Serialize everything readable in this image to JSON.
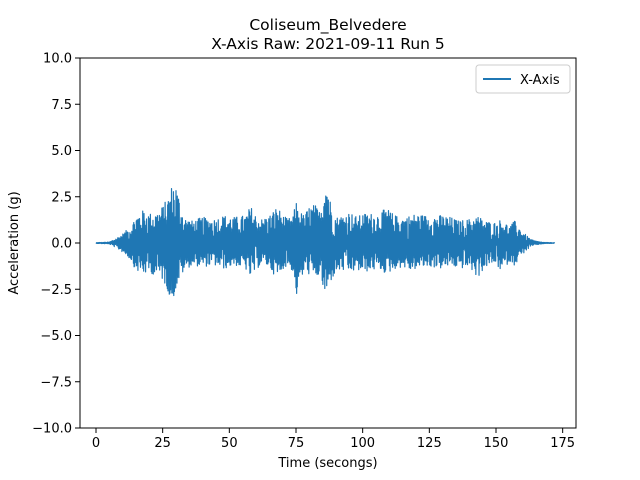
{
  "chart_data": {
    "type": "line",
    "title": "Coliseum_Belvedere",
    "subtitle": "X-Axis Raw: 2021-09-11 Run 5",
    "xlabel": "Time (secongs)",
    "ylabel": "Acceleration (g)",
    "xlim": [
      -6,
      180
    ],
    "ylim": [
      -10,
      10
    ],
    "x_ticks": [
      0,
      25,
      50,
      75,
      100,
      125,
      150,
      175
    ],
    "x_tick_labels": [
      "0",
      "25",
      "50",
      "75",
      "100",
      "125",
      "150",
      "175"
    ],
    "y_ticks": [
      10,
      7.5,
      5,
      2.5,
      0,
      -2.5,
      -5,
      -7.5,
      -10
    ],
    "y_tick_labels": [
      "10.0",
      "7.5",
      "5.0",
      "2.5",
      "0.0",
      "−2.5",
      "−5.0",
      "−7.5",
      "−10.0"
    ],
    "grid": false,
    "legend_position": "top-right",
    "series": [
      {
        "name": "X-Axis",
        "color": "#1f77b4",
        "envelope": {
          "x": [
            0,
            5,
            8,
            10,
            13,
            15,
            18,
            20,
            23,
            25,
            27,
            28,
            29,
            30,
            31,
            33,
            36,
            40,
            44,
            48,
            52,
            56,
            58,
            60,
            62,
            65,
            68,
            70,
            72,
            74,
            75,
            76,
            78,
            80,
            82,
            84,
            86,
            87,
            88,
            90,
            92,
            95,
            98,
            100,
            103,
            106,
            109,
            112,
            115,
            118,
            120,
            123,
            126,
            130,
            133,
            136,
            140,
            143,
            146,
            150,
            152,
            155,
            157,
            160,
            163,
            165,
            168,
            172
          ],
          "upper": [
            0.02,
            0.05,
            0.3,
            0.5,
            0.9,
            1.5,
            1.8,
            1.6,
            1.7,
            2.0,
            2.5,
            3.0,
            3.3,
            3.2,
            2.6,
            1.4,
            1.2,
            1.4,
            1.3,
            1.5,
            1.4,
            1.5,
            2.0,
            1.5,
            1.3,
            1.5,
            2.0,
            1.5,
            1.3,
            1.5,
            2.3,
            1.8,
            1.5,
            2.0,
            2.1,
            1.7,
            3.9,
            3.2,
            2.2,
            1.4,
            1.5,
            1.7,
            1.4,
            1.6,
            1.6,
            1.6,
            1.9,
            1.5,
            1.4,
            1.5,
            1.6,
            1.5,
            1.5,
            1.5,
            1.4,
            1.2,
            1.3,
            1.5,
            1.2,
            1.1,
            1.3,
            0.9,
            1.2,
            0.6,
            0.2,
            0.1,
            0.03,
            0.02
          ],
          "lower": [
            -0.02,
            -0.05,
            -0.3,
            -0.5,
            -0.9,
            -1.5,
            -1.7,
            -1.6,
            -1.8,
            -2.0,
            -2.6,
            -3.3,
            -3.0,
            -2.5,
            -2.1,
            -1.5,
            -1.2,
            -1.3,
            -1.2,
            -1.4,
            -1.2,
            -1.4,
            -1.9,
            -1.5,
            -1.1,
            -1.3,
            -2.0,
            -1.4,
            -1.2,
            -1.6,
            -3.0,
            -2.4,
            -1.6,
            -1.7,
            -2.0,
            -1.7,
            -3.1,
            -2.6,
            -2.1,
            -1.6,
            -1.5,
            -1.6,
            -1.5,
            -1.6,
            -1.5,
            -1.4,
            -1.7,
            -1.4,
            -1.3,
            -1.5,
            -1.4,
            -1.3,
            -1.3,
            -1.4,
            -1.2,
            -1.4,
            -1.3,
            -1.9,
            -1.3,
            -1.1,
            -1.6,
            -1.0,
            -1.2,
            -0.6,
            -0.2,
            -0.1,
            -0.03,
            -0.02
          ]
        }
      }
    ]
  }
}
